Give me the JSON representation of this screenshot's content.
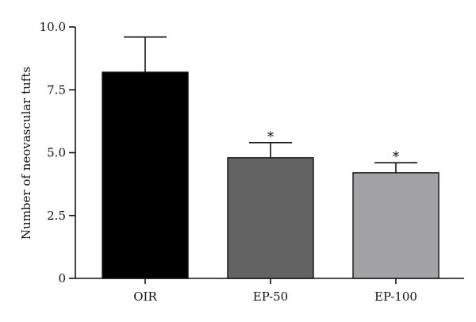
{
  "chart_data": {
    "type": "bar",
    "title": "",
    "xlabel": "",
    "ylabel": "Number of neovascular tufts",
    "ylim": [
      0,
      10
    ],
    "yticks": [
      0,
      2.5,
      5.0,
      7.5,
      10.0
    ],
    "ytick_labels": [
      "0",
      "2.5",
      "5.0",
      "7.5",
      "10.0"
    ],
    "categories": [
      "OIR",
      "EP-50",
      "EP-100"
    ],
    "values": [
      8.2,
      4.8,
      4.2
    ],
    "error_upper": [
      1.4,
      0.6,
      0.4
    ],
    "significance": [
      "",
      "*",
      "*"
    ],
    "colors": [
      "#000000",
      "#636363",
      "#a3a3a6"
    ],
    "grid": false,
    "legend": "none"
  }
}
